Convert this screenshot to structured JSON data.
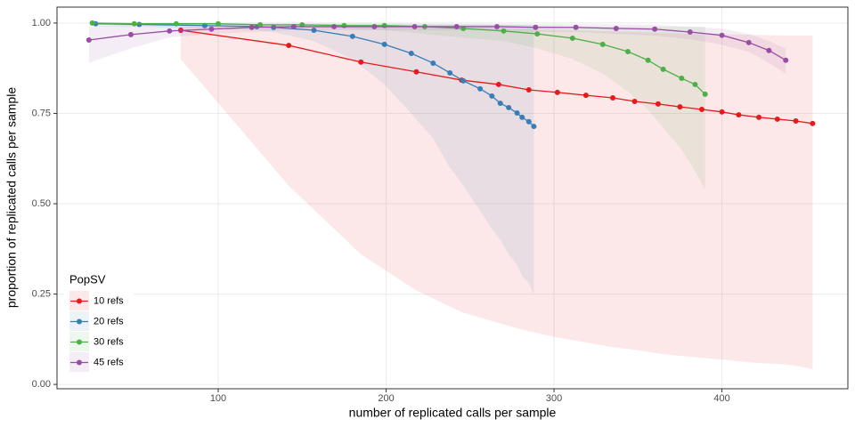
{
  "chart_data": {
    "type": "line",
    "x_label": "number of replicated calls per sample",
    "y_label": "proportion of replicated calls per sample",
    "xlim": [
      4,
      475
    ],
    "ylim": [
      -0.012,
      1.044
    ],
    "xticks": [
      100,
      200,
      300,
      400
    ],
    "yticks": [
      {
        "value": 0,
        "label": "0.00"
      },
      {
        "value": 0.25,
        "label": "0.25"
      },
      {
        "value": 0.5,
        "label": "0.50"
      },
      {
        "value": 0.75,
        "label": "0.75"
      },
      {
        "value": 1,
        "label": "1.00"
      }
    ],
    "grid": true,
    "legend_title": "PopSV",
    "legend_position": "bottom-left",
    "series": [
      {
        "name": "10 refs",
        "color": "#e41a1c",
        "x": [
          77.7,
          142,
          185,
          218,
          245,
          267,
          285,
          302,
          319,
          335,
          348,
          362,
          375,
          388,
          400,
          410,
          422,
          433,
          444,
          454
        ],
        "values": [
          0.98,
          0.938,
          0.892,
          0.865,
          0.842,
          0.83,
          0.815,
          0.808,
          0.8,
          0.793,
          0.783,
          0.776,
          0.768,
          0.761,
          0.754,
          0.746,
          0.739,
          0.734,
          0.729,
          0.722
        ],
        "lower": [
          0.9,
          0.55,
          0.36,
          0.26,
          0.2,
          0.17,
          0.147,
          0.13,
          0.116,
          0.103,
          0.096,
          0.086,
          0.079,
          0.074,
          0.069,
          0.064,
          0.059,
          0.057,
          0.052,
          0.042
        ],
        "upper": [
          0.99,
          0.99,
          0.99,
          0.99,
          0.988,
          0.985,
          0.983,
          0.981,
          0.979,
          0.977,
          0.975,
          0.973,
          0.971,
          0.97,
          0.969,
          0.968,
          0.967,
          0.966,
          0.965,
          0.965
        ]
      },
      {
        "name": "20 refs",
        "color": "#377eb8",
        "x": [
          27,
          53,
          92,
          123,
          133,
          157,
          180,
          199,
          215,
          228,
          238,
          246,
          256,
          263,
          268,
          273,
          278,
          281,
          285,
          288
        ],
        "values": [
          0.998,
          0.996,
          0.993,
          0.99,
          0.988,
          0.98,
          0.963,
          0.941,
          0.916,
          0.889,
          0.862,
          0.84,
          0.818,
          0.798,
          0.778,
          0.766,
          0.751,
          0.739,
          0.727,
          0.714
        ],
        "lower": [
          0.99,
          0.99,
          0.985,
          0.98,
          0.975,
          0.95,
          0.9,
          0.83,
          0.75,
          0.68,
          0.6,
          0.55,
          0.48,
          0.43,
          0.4,
          0.36,
          0.33,
          0.3,
          0.28,
          0.25
        ],
        "upper": [
          1,
          1,
          1,
          0.998,
          0.998,
          0.997,
          0.996,
          0.995,
          0.995,
          0.995,
          0.995,
          0.995,
          0.995,
          0.995,
          0.995,
          0.995,
          0.995,
          0.995,
          0.995,
          0.995
        ]
      },
      {
        "name": "30 refs",
        "color": "#4daf4a",
        "x": [
          25,
          50,
          75,
          100,
          125,
          150,
          175,
          199,
          223,
          246,
          270,
          290,
          311,
          329,
          344,
          356,
          365,
          376,
          384,
          390
        ],
        "values": [
          1,
          0.998,
          0.998,
          0.998,
          0.995,
          0.995,
          0.993,
          0.993,
          0.99,
          0.985,
          0.978,
          0.97,
          0.958,
          0.941,
          0.921,
          0.897,
          0.872,
          0.847,
          0.83,
          0.803
        ],
        "lower": [
          0.995,
          0.995,
          0.995,
          0.993,
          0.99,
          0.99,
          0.985,
          0.98,
          0.97,
          0.96,
          0.95,
          0.93,
          0.9,
          0.86,
          0.81,
          0.76,
          0.71,
          0.65,
          0.59,
          0.54
        ],
        "upper": [
          1,
          1,
          1,
          1,
          1,
          1,
          1,
          1,
          0.998,
          0.997,
          0.995,
          0.993,
          0.99,
          0.99,
          0.99,
          0.99,
          0.99,
          0.99,
          0.99,
          0.99
        ]
      },
      {
        "name": "45 refs",
        "color": "#984ea3",
        "x": [
          23,
          48,
          71,
          96,
          120,
          145,
          169,
          193,
          217,
          242,
          266,
          289,
          313,
          337,
          360,
          381,
          400,
          416,
          428,
          438
        ],
        "values": [
          0.953,
          0.968,
          0.978,
          0.983,
          0.988,
          0.99,
          0.99,
          0.99,
          0.99,
          0.99,
          0.99,
          0.988,
          0.988,
          0.985,
          0.983,
          0.975,
          0.966,
          0.946,
          0.924,
          0.897
        ],
        "lower": [
          0.89,
          0.93,
          0.96,
          0.97,
          0.975,
          0.98,
          0.98,
          0.98,
          0.98,
          0.98,
          0.98,
          0.975,
          0.975,
          0.97,
          0.965,
          0.955,
          0.94,
          0.92,
          0.89,
          0.86
        ],
        "upper": [
          0.99,
          0.995,
          0.998,
          0.998,
          0.998,
          0.998,
          0.998,
          0.998,
          0.998,
          0.998,
          0.998,
          0.997,
          0.997,
          0.996,
          0.995,
          0.99,
          0.985,
          0.97,
          0.95,
          0.93
        ]
      }
    ]
  }
}
